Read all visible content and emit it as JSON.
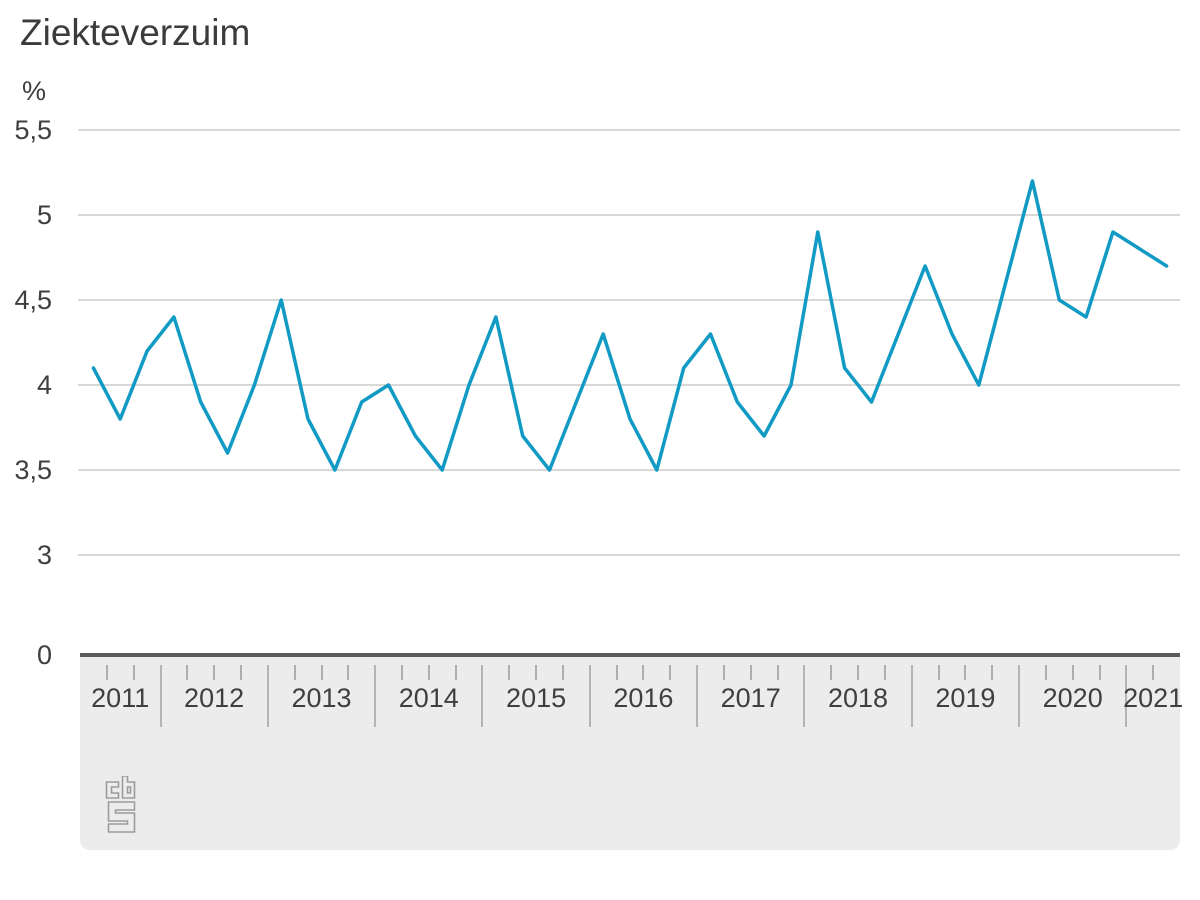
{
  "chart": {
    "title": "Ziekteverzuim",
    "unit": "%",
    "colors": {
      "line": "#119ac4",
      "gridline": "#cccccc",
      "axis_bar": "#5c5c5e",
      "axis_panel": "#ececec",
      "tick": "#b0b0b0",
      "text": "#3f3f3f",
      "logo": "#9b9b9b"
    }
  },
  "chart_data": {
    "type": "line",
    "title": "Ziekteverzuim",
    "ylabel": "%",
    "legend": false,
    "grid": true,
    "y_axis_break": true,
    "y_ticks": [
      {
        "label": "5,5",
        "value": 5.5
      },
      {
        "label": "5",
        "value": 5.0
      },
      {
        "label": "4,5",
        "value": 4.5
      },
      {
        "label": "4",
        "value": 4.0
      },
      {
        "label": "3,5",
        "value": 3.5
      },
      {
        "label": "3",
        "value": 3.0
      },
      {
        "label": "0",
        "value": 0
      }
    ],
    "x_year_labels": [
      "2011",
      "2012",
      "2013",
      "2014",
      "2015",
      "2016",
      "2017",
      "2018",
      "2019",
      "2020",
      "2021"
    ],
    "periods": [
      "2011 K2",
      "2011 K3",
      "2011 K4",
      "2012 K1",
      "2012 K2",
      "2012 K3",
      "2012 K4",
      "2013 K1",
      "2013 K2",
      "2013 K3",
      "2013 K4",
      "2014 K1",
      "2014 K2",
      "2014 K3",
      "2014 K4",
      "2015 K1",
      "2015 K2",
      "2015 K3",
      "2015 K4",
      "2016 K1",
      "2016 K2",
      "2016 K3",
      "2016 K4",
      "2017 K1",
      "2017 K2",
      "2017 K3",
      "2017 K4",
      "2018 K1",
      "2018 K2",
      "2018 K3",
      "2018 K4",
      "2019 K1",
      "2019 K2",
      "2019 K3",
      "2019 K4",
      "2020 K1",
      "2020 K2",
      "2020 K3",
      "2020 K4",
      "2021 K1",
      "2021 K2"
    ],
    "series": [
      {
        "name": "Ziekteverzuim",
        "color": "#119ac4",
        "values": [
          4.1,
          3.8,
          4.2,
          4.4,
          3.9,
          3.6,
          4.0,
          4.5,
          3.8,
          3.5,
          3.9,
          4.0,
          3.7,
          3.5,
          4.0,
          4.4,
          3.7,
          3.5,
          3.9,
          4.3,
          3.8,
          3.5,
          4.1,
          4.3,
          3.9,
          3.7,
          4.0,
          4.9,
          4.1,
          3.9,
          4.3,
          4.7,
          4.3,
          4.0,
          4.6,
          5.2,
          4.5,
          4.4,
          4.9,
          4.8,
          4.7
        ]
      }
    ]
  }
}
